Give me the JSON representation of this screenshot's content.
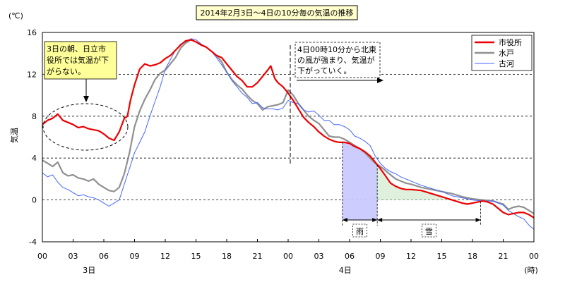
{
  "chart_data": {
    "type": "line",
    "title": "2014年2月3日～4日の10分毎の気温の推移",
    "ylabel": "気温",
    "yunit": "(℃)",
    "xunit": "(時)",
    "ylim": [
      -4,
      16
    ],
    "yticks": [
      -4,
      0,
      4,
      8,
      12,
      16
    ],
    "xlim_hours": [
      0,
      48
    ],
    "xticks": [
      {
        "h": 0,
        "label": "00"
      },
      {
        "h": 3,
        "label": "03"
      },
      {
        "h": 6,
        "label": "06"
      },
      {
        "h": 9,
        "label": "09"
      },
      {
        "h": 12,
        "label": "12"
      },
      {
        "h": 15,
        "label": "15"
      },
      {
        "h": 18,
        "label": "18"
      },
      {
        "h": 21,
        "label": "21"
      },
      {
        "h": 24,
        "label": "00"
      },
      {
        "h": 27,
        "label": "03"
      },
      {
        "h": 30,
        "label": "06"
      },
      {
        "h": 33,
        "label": "09"
      },
      {
        "h": 36,
        "label": "12"
      },
      {
        "h": 39,
        "label": "15"
      },
      {
        "h": 42,
        "label": "18"
      },
      {
        "h": 45,
        "label": "21"
      },
      {
        "h": 48,
        "label": "00"
      }
    ],
    "day_labels": [
      {
        "h": 2.5,
        "label": "3日"
      },
      {
        "h": 27.5,
        "label": "4日"
      }
    ],
    "grid": "horizontal dashed",
    "legend_position": "top-right",
    "series": [
      {
        "name": "市役所",
        "color": "#ee0000",
        "points": [
          [
            0,
            7.2
          ],
          [
            0.5,
            7.6
          ],
          [
            1,
            7.8
          ],
          [
            1.5,
            8.2
          ],
          [
            2,
            7.6
          ],
          [
            2.5,
            7.4
          ],
          [
            3,
            7.2
          ],
          [
            3.5,
            6.9
          ],
          [
            4,
            7.0
          ],
          [
            4.5,
            6.8
          ],
          [
            5,
            6.7
          ],
          [
            5.5,
            6.6
          ],
          [
            6,
            6.3
          ],
          [
            6.5,
            5.9
          ],
          [
            7,
            5.7
          ],
          [
            7.5,
            6.5
          ],
          [
            8,
            7.8
          ],
          [
            8.3,
            8.0
          ],
          [
            8.6,
            9.5
          ],
          [
            9,
            11.0
          ],
          [
            9.5,
            12.5
          ],
          [
            10,
            13.0
          ],
          [
            10.5,
            12.8
          ],
          [
            11,
            12.9
          ],
          [
            11.5,
            13.1
          ],
          [
            12,
            13.5
          ],
          [
            12.5,
            13.8
          ],
          [
            13,
            14.3
          ],
          [
            13.5,
            14.8
          ],
          [
            14,
            15.2
          ],
          [
            14.5,
            15.3
          ],
          [
            15,
            15.1
          ],
          [
            15.5,
            14.8
          ],
          [
            16,
            14.6
          ],
          [
            16.5,
            14.2
          ],
          [
            17,
            13.8
          ],
          [
            17.5,
            13.6
          ],
          [
            18,
            13.0
          ],
          [
            18.5,
            12.4
          ],
          [
            19,
            11.8
          ],
          [
            19.5,
            11.4
          ],
          [
            20,
            10.8
          ],
          [
            20.5,
            10.8
          ],
          [
            21,
            11.2
          ],
          [
            21.5,
            11.8
          ],
          [
            22,
            12.4
          ],
          [
            22.3,
            12.8
          ],
          [
            22.7,
            11.6
          ],
          [
            23,
            11.2
          ],
          [
            23.5,
            10.8
          ],
          [
            24,
            10.2
          ],
          [
            24.5,
            9.5
          ],
          [
            25,
            8.7
          ],
          [
            25.5,
            7.9
          ],
          [
            26,
            7.4
          ],
          [
            26.5,
            7.0
          ],
          [
            27,
            6.5
          ],
          [
            27.5,
            6.1
          ],
          [
            28,
            5.8
          ],
          [
            28.5,
            5.6
          ],
          [
            29,
            5.5
          ],
          [
            29.5,
            5.5
          ],
          [
            30,
            5.4
          ],
          [
            30.5,
            5.1
          ],
          [
            31,
            4.9
          ],
          [
            31.5,
            4.6
          ],
          [
            32,
            4.2
          ],
          [
            32.5,
            3.6
          ],
          [
            33,
            3.0
          ],
          [
            33.5,
            2.3
          ],
          [
            34,
            1.6
          ],
          [
            34.5,
            1.3
          ],
          [
            35,
            1.1
          ],
          [
            35.5,
            1.0
          ],
          [
            36,
            1.0
          ],
          [
            37,
            0.9
          ],
          [
            38,
            0.6
          ],
          [
            39,
            0.3
          ],
          [
            40,
            0.0
          ],
          [
            41,
            -0.3
          ],
          [
            41.5,
            -0.4
          ],
          [
            42,
            -0.3
          ],
          [
            42.5,
            -0.2
          ],
          [
            43,
            -0.1
          ],
          [
            43.5,
            -0.2
          ],
          [
            44,
            -0.4
          ],
          [
            44.5,
            -0.8
          ],
          [
            45,
            -1.2
          ],
          [
            45.5,
            -1.4
          ],
          [
            46,
            -1.3
          ],
          [
            46.5,
            -1.2
          ],
          [
            47,
            -1.2
          ],
          [
            47.5,
            -1.4
          ],
          [
            48,
            -1.7
          ]
        ]
      },
      {
        "name": "水戸",
        "color": "#909090",
        "points": [
          [
            0,
            3.8
          ],
          [
            0.5,
            3.5
          ],
          [
            1,
            3.2
          ],
          [
            1.5,
            3.6
          ],
          [
            2,
            2.6
          ],
          [
            2.5,
            2.3
          ],
          [
            3,
            2.4
          ],
          [
            3.5,
            2.1
          ],
          [
            4,
            2.0
          ],
          [
            4.5,
            1.8
          ],
          [
            5,
            2.0
          ],
          [
            5.5,
            1.5
          ],
          [
            6,
            1.2
          ],
          [
            6.5,
            0.9
          ],
          [
            7,
            0.8
          ],
          [
            7.5,
            1.2
          ],
          [
            8,
            2.5
          ],
          [
            8.5,
            4.5
          ],
          [
            9,
            7.0
          ],
          [
            9.5,
            8.5
          ],
          [
            10,
            9.6
          ],
          [
            10.5,
            10.5
          ],
          [
            11,
            11.5
          ],
          [
            11.5,
            12.1
          ],
          [
            12,
            12.4
          ],
          [
            12.5,
            13.0
          ],
          [
            13,
            13.6
          ],
          [
            13.5,
            14.5
          ],
          [
            14,
            15.0
          ],
          [
            14.5,
            15.3
          ],
          [
            15,
            15.1
          ],
          [
            15.5,
            14.8
          ],
          [
            16,
            14.6
          ],
          [
            16.5,
            14.2
          ],
          [
            17,
            13.8
          ],
          [
            17.5,
            13.2
          ],
          [
            18,
            12.2
          ],
          [
            18.5,
            11.5
          ],
          [
            19,
            11.0
          ],
          [
            19.5,
            10.6
          ],
          [
            20,
            10.0
          ],
          [
            20.5,
            9.5
          ],
          [
            21,
            9.2
          ],
          [
            21.5,
            8.6
          ],
          [
            22,
            8.9
          ],
          [
            22.5,
            9.0
          ],
          [
            23,
            9.1
          ],
          [
            23.5,
            9.3
          ],
          [
            24,
            10.5
          ],
          [
            24.5,
            10.0
          ],
          [
            25,
            9.2
          ],
          [
            25.5,
            8.6
          ],
          [
            26,
            8.0
          ],
          [
            26.5,
            7.6
          ],
          [
            27,
            7.3
          ],
          [
            27.5,
            6.7
          ],
          [
            28,
            6.1
          ],
          [
            28.5,
            6.0
          ],
          [
            29,
            6.0
          ],
          [
            29.5,
            5.8
          ],
          [
            30,
            5.5
          ],
          [
            30.5,
            5.2
          ],
          [
            31,
            4.9
          ],
          [
            31.5,
            4.5
          ],
          [
            32,
            4.0
          ],
          [
            32.5,
            3.5
          ],
          [
            33,
            3.2
          ],
          [
            33.5,
            2.8
          ],
          [
            34,
            2.4
          ],
          [
            34.5,
            2.0
          ],
          [
            35,
            1.8
          ],
          [
            35.5,
            1.6
          ],
          [
            36,
            1.5
          ],
          [
            37,
            1.2
          ],
          [
            38,
            1.0
          ],
          [
            39,
            0.8
          ],
          [
            40,
            0.6
          ],
          [
            41,
            0.3
          ],
          [
            42,
            0.1
          ],
          [
            43,
            0.0
          ],
          [
            44,
            -0.1
          ],
          [
            45,
            -0.4
          ],
          [
            45.5,
            -0.9
          ],
          [
            46,
            -0.7
          ],
          [
            46.5,
            -0.6
          ],
          [
            47,
            -0.7
          ],
          [
            47.5,
            -1.0
          ],
          [
            48,
            -1.3
          ]
        ]
      },
      {
        "name": "古河",
        "color": "#4466ff",
        "points": [
          [
            0,
            2.6
          ],
          [
            0.5,
            2.2
          ],
          [
            1,
            2.4
          ],
          [
            1.5,
            1.7
          ],
          [
            2,
            1.2
          ],
          [
            2.5,
            1.0
          ],
          [
            3,
            0.7
          ],
          [
            3.5,
            0.4
          ],
          [
            4,
            0.5
          ],
          [
            4.5,
            0.3
          ],
          [
            5,
            0.2
          ],
          [
            5.5,
            0.0
          ],
          [
            6,
            -0.3
          ],
          [
            6.5,
            -0.6
          ],
          [
            7,
            -0.3
          ],
          [
            7.5,
            0.0
          ],
          [
            8,
            1.5
          ],
          [
            8.5,
            3.0
          ],
          [
            9,
            4.5
          ],
          [
            9.5,
            5.5
          ],
          [
            10,
            6.5
          ],
          [
            10.5,
            8.0
          ],
          [
            11,
            9.4
          ],
          [
            11.5,
            10.8
          ],
          [
            12,
            12.5
          ],
          [
            12.5,
            13.4
          ],
          [
            13,
            14.3
          ],
          [
            13.5,
            14.9
          ],
          [
            14,
            15.1
          ],
          [
            14.5,
            15.4
          ],
          [
            15,
            15.3
          ],
          [
            15.5,
            14.9
          ],
          [
            16,
            14.6
          ],
          [
            16.5,
            14.2
          ],
          [
            17,
            13.6
          ],
          [
            17.5,
            12.9
          ],
          [
            18,
            12.2
          ],
          [
            18.5,
            11.4
          ],
          [
            19,
            10.8
          ],
          [
            19.5,
            10.2
          ],
          [
            20,
            9.8
          ],
          [
            20.5,
            9.2
          ],
          [
            21,
            9.3
          ],
          [
            21.5,
            8.8
          ],
          [
            22,
            8.7
          ],
          [
            22.5,
            8.7
          ],
          [
            23,
            8.6
          ],
          [
            23.5,
            8.8
          ],
          [
            24,
            9.5
          ],
          [
            24.5,
            9.3
          ],
          [
            25,
            9.2
          ],
          [
            25.5,
            8.6
          ],
          [
            26,
            8.4
          ],
          [
            26.5,
            8.5
          ],
          [
            27,
            8.1
          ],
          [
            27.5,
            7.6
          ],
          [
            28,
            7.6
          ],
          [
            28.5,
            7.2
          ],
          [
            29,
            7.2
          ],
          [
            29.5,
            7.0
          ],
          [
            30,
            6.7
          ],
          [
            30.5,
            6.1
          ],
          [
            31,
            5.9
          ],
          [
            31.5,
            5.6
          ],
          [
            32,
            5.2
          ],
          [
            32.5,
            4.2
          ],
          [
            33,
            3.5
          ],
          [
            33.5,
            3.0
          ],
          [
            34,
            2.7
          ],
          [
            34.5,
            2.5
          ],
          [
            35,
            2.2
          ],
          [
            35.5,
            2.0
          ],
          [
            36,
            1.8
          ],
          [
            37,
            1.4
          ],
          [
            38,
            1.1
          ],
          [
            39,
            0.8
          ],
          [
            40,
            0.4
          ],
          [
            41,
            0.2
          ],
          [
            42,
            0.0
          ],
          [
            43,
            -0.1
          ],
          [
            44,
            -0.1
          ],
          [
            45,
            -0.5
          ],
          [
            45.5,
            -1.0
          ],
          [
            46,
            -1.3
          ],
          [
            46.5,
            -1.6
          ],
          [
            47,
            -1.8
          ],
          [
            47.5,
            -2.4
          ],
          [
            48,
            -2.8
          ]
        ]
      }
    ],
    "annotations": {
      "morning_note": [
        "3日の朝、日立市",
        "役所では気温が下",
        "がらない。"
      ],
      "wind_note": [
        "4日00時10分から北東",
        "の風が強まり、気温が",
        "下がっていく。"
      ],
      "rain_label": "雨",
      "snow_label": "雪",
      "rain_span_hours": [
        29.3,
        32.7
      ],
      "snow_span_hours": [
        32.7,
        42.8
      ],
      "rain_color": "#ccccff",
      "snow_color": "#dff0dc",
      "note_fill": "#ffff99"
    }
  }
}
